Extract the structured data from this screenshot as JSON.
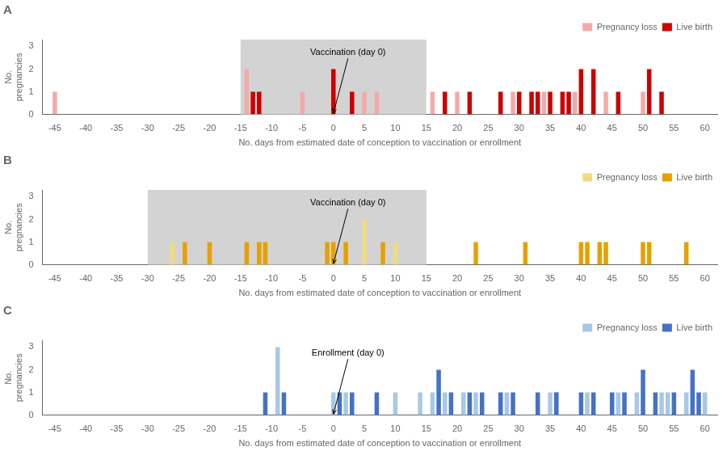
{
  "chart_data": [
    {
      "type": "bar",
      "title": "A",
      "x_label": "No. days from estimated date of conception to vaccination or enrollment",
      "y_label": "No.\npregnancies",
      "series": [
        {
          "name": "Pregnancy loss",
          "color": "#F4AAAA",
          "x": [
            -45,
            -14,
            -5,
            5,
            7,
            16,
            20,
            29,
            34,
            39,
            44,
            50
          ],
          "values": [
            1,
            2,
            1,
            1,
            1,
            1,
            1,
            1,
            1,
            1,
            1,
            1
          ]
        },
        {
          "name": "Live birth",
          "color": "#CC0000",
          "x": [
            -13,
            -12,
            0,
            3,
            18,
            22,
            27,
            30,
            32,
            33,
            35,
            37,
            38,
            40,
            42,
            46,
            51,
            53
          ],
          "values": [
            1,
            1,
            2,
            1,
            1,
            1,
            1,
            1,
            1,
            1,
            1,
            1,
            1,
            2,
            2,
            1,
            2,
            1
          ]
        }
      ],
      "shaded_region": {
        "from": -15,
        "to": 15,
        "color": "#D3D3D3"
      },
      "annotations": [
        {
          "text": "Vaccination (day 0)",
          "x": 0,
          "y": 0.05
        }
      ],
      "xlim": [
        -47,
        62
      ],
      "xticks": [
        -45,
        -40,
        -35,
        -30,
        -25,
        -20,
        -15,
        -10,
        -5,
        0,
        5,
        10,
        15,
        20,
        25,
        30,
        35,
        40,
        45,
        50,
        55,
        60
      ],
      "ylim": [
        0,
        3.3
      ],
      "yticks": [
        0,
        1,
        2,
        3
      ],
      "grid": false,
      "legend": "upper right"
    },
    {
      "type": "bar",
      "title": "B",
      "x_label": "No. days from estimated date of conception to vaccination or enrollment",
      "y_label": "No.\npregnancies",
      "series": [
        {
          "name": "Pregnancy loss",
          "color": "#F0DC80",
          "x": [
            -26,
            5,
            10
          ],
          "values": [
            1,
            2,
            1
          ]
        },
        {
          "name": "Live birth",
          "color": "#E8A000",
          "x": [
            -24,
            -20,
            -14,
            -12,
            -11,
            -1,
            0,
            2,
            8,
            23,
            31,
            40,
            41,
            43,
            44,
            50,
            51,
            57
          ],
          "values": [
            1,
            1,
            1,
            1,
            1,
            1,
            1,
            1,
            1,
            1,
            1,
            1,
            1,
            1,
            1,
            1,
            1,
            1
          ]
        }
      ],
      "shaded_region": {
        "from": -30,
        "to": 15,
        "color": "#D3D3D3"
      },
      "annotations": [
        {
          "text": "Vaccination (day 0)",
          "x": 0,
          "y": 0.05
        }
      ],
      "xlim": [
        -47,
        62
      ],
      "xticks": [
        -45,
        -40,
        -35,
        -30,
        -25,
        -20,
        -15,
        -10,
        -5,
        0,
        5,
        10,
        15,
        20,
        25,
        30,
        35,
        40,
        45,
        50,
        55,
        60
      ],
      "ylim": [
        0,
        3.3
      ],
      "yticks": [
        0,
        1,
        2,
        3
      ],
      "grid": false,
      "legend": "upper right"
    },
    {
      "type": "bar",
      "title": "C",
      "x_label": "No. days from estimated date of conception to vaccination or enrollment",
      "y_label": "No.\npregnancies",
      "series": [
        {
          "name": "Pregnancy loss",
          "color": "#A8C8E8",
          "x": [
            -9,
            0,
            2,
            10,
            14,
            16,
            18,
            21,
            23,
            28,
            35,
            36,
            41,
            46,
            49,
            53,
            54,
            57,
            60
          ],
          "values": [
            3,
            1,
            1,
            1,
            1,
            1,
            1,
            1,
            1,
            1,
            1,
            1,
            1,
            1,
            1,
            1,
            1,
            1,
            1
          ]
        },
        {
          "name": "Live birth",
          "color": "#4472C4",
          "x": [
            -11,
            -8,
            1,
            3,
            7,
            17,
            19,
            22,
            24,
            27,
            29,
            33,
            36,
            40,
            42,
            45,
            47,
            50,
            52,
            55,
            58,
            59
          ],
          "values": [
            1,
            1,
            1,
            1,
            1,
            2,
            1,
            1,
            1,
            1,
            1,
            1,
            1,
            1,
            1,
            1,
            1,
            2,
            1,
            1,
            2,
            1
          ]
        }
      ],
      "annotations": [
        {
          "text": "Enrollment (day 0)",
          "x": 0,
          "y": 0.05
        }
      ],
      "xlim": [
        -47,
        62
      ],
      "xticks": [
        -45,
        -40,
        -35,
        -30,
        -25,
        -20,
        -15,
        -10,
        -5,
        0,
        5,
        10,
        15,
        20,
        25,
        30,
        35,
        40,
        45,
        50,
        55,
        60
      ],
      "ylim": [
        0,
        3.3
      ],
      "yticks": [
        0,
        1,
        2,
        3
      ],
      "grid": false,
      "legend": "upper right"
    }
  ]
}
